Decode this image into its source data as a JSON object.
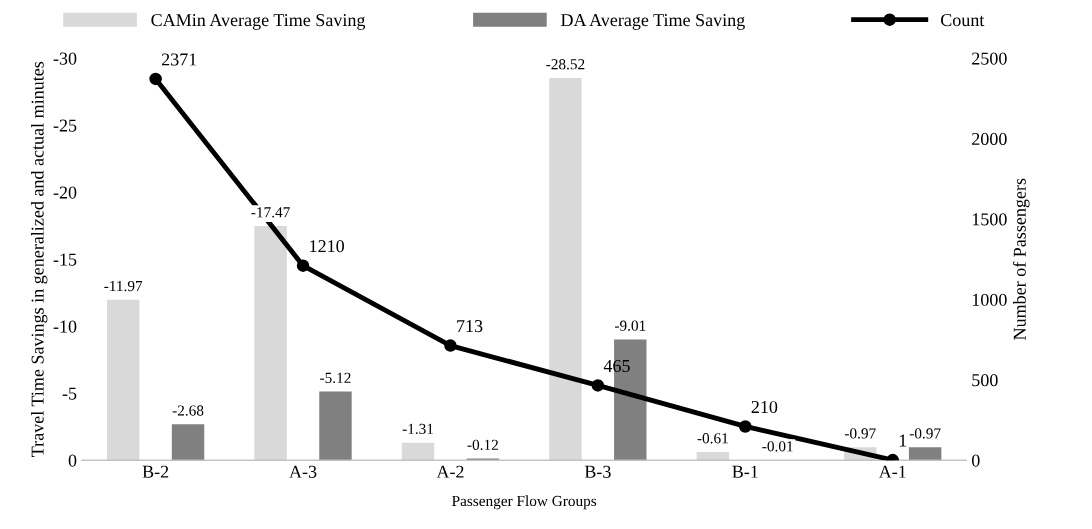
{
  "chart_data": {
    "type": "bar",
    "categories": [
      "B-2",
      "A-3",
      "A-2",
      "B-3",
      "B-1",
      "A-1"
    ],
    "series": [
      {
        "name": "CAMin Average Time Saving",
        "color": "#d9d9d9",
        "values": [
          -11.97,
          -17.47,
          -1.31,
          -28.52,
          -0.61,
          -0.97
        ]
      },
      {
        "name": "DA Average Time Saving",
        "color": "#808080",
        "values": [
          -2.68,
          -5.12,
          -0.12,
          -9.01,
          -0.01,
          -0.97
        ]
      },
      {
        "name": "Count",
        "type": "line",
        "axis": "y2",
        "color": "#000000",
        "marker": "circle",
        "values": [
          2371,
          1210,
          713,
          465,
          210,
          1
        ]
      }
    ],
    "xlabel": "Passenger Flow Groups",
    "ylabel": "Travel Time Savings in generalized and actual minutes",
    "y2label": "Number of Passengers",
    "ylim": [
      0,
      -30
    ],
    "yticks": [
      0,
      -5,
      -10,
      -15,
      -20,
      -25,
      -30
    ],
    "y2lim": [
      0,
      2500
    ],
    "y2ticks": [
      0,
      500,
      1000,
      1500,
      2000,
      2500
    ],
    "data_labels": true,
    "grid": false,
    "legend": "top"
  }
}
